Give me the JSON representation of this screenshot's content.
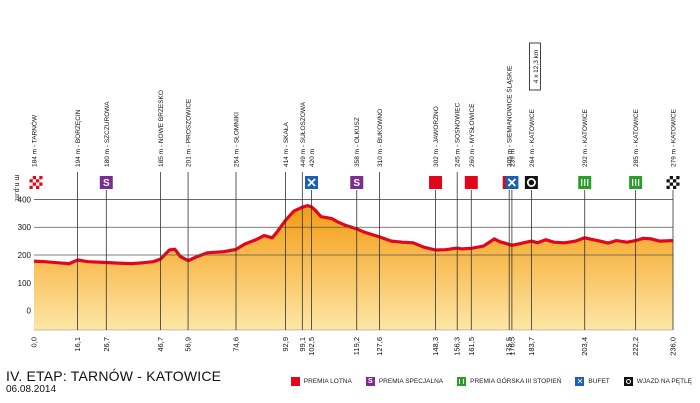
{
  "chart_data": {
    "type": "area",
    "title": "IV. ETAP: TARNÓW - KATOWICE",
    "date": "06.08.2014",
    "ylabel": "m n.p.m.",
    "yticks": [
      "0",
      "100",
      "200",
      "300",
      "400"
    ],
    "ylim": [
      -70,
      470
    ],
    "xlim": [
      0,
      236
    ],
    "grid": "horizontal lines at 200, 300 and 400",
    "colors": {
      "fill": "#f7a11a",
      "line": "#e3051b",
      "grid": "#555555"
    },
    "profile": [
      [
        0,
        178
      ],
      [
        4,
        176
      ],
      [
        9,
        172
      ],
      [
        13,
        169
      ],
      [
        16.1,
        182
      ],
      [
        20,
        176
      ],
      [
        26.7,
        173
      ],
      [
        31,
        171
      ],
      [
        36,
        169
      ],
      [
        40,
        172
      ],
      [
        44,
        176
      ],
      [
        46.7,
        185
      ],
      [
        50,
        218
      ],
      [
        52,
        221
      ],
      [
        54,
        195
      ],
      [
        56.9,
        180
      ],
      [
        60,
        193
      ],
      [
        64,
        208
      ],
      [
        70,
        212
      ],
      [
        74.6,
        220
      ],
      [
        78,
        240
      ],
      [
        82,
        255
      ],
      [
        85,
        270
      ],
      [
        88,
        262
      ],
      [
        90,
        286
      ],
      [
        92.9,
        325
      ],
      [
        96,
        358
      ],
      [
        99.1,
        372
      ],
      [
        101,
        378
      ],
      [
        102.5,
        373
      ],
      [
        104,
        360
      ],
      [
        106,
        338
      ],
      [
        110,
        331
      ],
      [
        112,
        320
      ],
      [
        115,
        307
      ],
      [
        119.2,
        294
      ],
      [
        122,
        282
      ],
      [
        127.6,
        265
      ],
      [
        132,
        250
      ],
      [
        136,
        246
      ],
      [
        140,
        244
      ],
      [
        144,
        228
      ],
      [
        148.3,
        218
      ],
      [
        152,
        219
      ],
      [
        156.3,
        225
      ],
      [
        158,
        222
      ],
      [
        161.5,
        224
      ],
      [
        166,
        232
      ],
      [
        170,
        258
      ],
      [
        172,
        248
      ],
      [
        175.5,
        238
      ],
      [
        176.5,
        235
      ],
      [
        180,
        242
      ],
      [
        183.7,
        250
      ],
      [
        186,
        244
      ],
      [
        189,
        255
      ],
      [
        192,
        246
      ],
      [
        196,
        244
      ],
      [
        200,
        250
      ],
      [
        203.4,
        262
      ],
      [
        206,
        256
      ],
      [
        209,
        250
      ],
      [
        212,
        243
      ],
      [
        215,
        252
      ],
      [
        219,
        246
      ],
      [
        222.2,
        252
      ],
      [
        225,
        260
      ],
      [
        228,
        258
      ],
      [
        231,
        250
      ],
      [
        236,
        252
      ]
    ],
    "km_ticks": [
      "0,0",
      "16,1",
      "26,7",
      "46,7",
      "56,9",
      "74,6",
      "92,9",
      "99,1",
      "102,5",
      "119,2",
      "127,6",
      "148,3",
      "156,3",
      "161,5",
      "175,5",
      "176,5",
      "183,7",
      "203,4",
      "222,2",
      "236,0"
    ],
    "points": [
      {
        "km": 0,
        "label": "184 m - TARNÓW",
        "icon": "start-flag"
      },
      {
        "km": 16.1,
        "label": "194 m - BORZĘCIN",
        "icon": ""
      },
      {
        "km": 26.7,
        "label": "180 m - SZCZUROWA",
        "icon": "S"
      },
      {
        "km": 46.7,
        "label": "185 m - NOWE BRZESKO",
        "icon": ""
      },
      {
        "km": 56.9,
        "label": "201 m - PROSZOWICE",
        "icon": ""
      },
      {
        "km": 74.6,
        "label": "254 m - SŁOMNIKI",
        "icon": ""
      },
      {
        "km": 92.9,
        "label": "414 m - SKAŁA",
        "icon": ""
      },
      {
        "km": 99.1,
        "label": "449 m - SUŁOSZOWA",
        "icon": ""
      },
      {
        "km": 102.5,
        "label": "420 m",
        "icon": "feed"
      },
      {
        "km": 119.2,
        "label": "358 m - OLKUSZ",
        "icon": "S"
      },
      {
        "km": 127.6,
        "label": "310 m - BUKOWNO",
        "icon": ""
      },
      {
        "km": 148.3,
        "label": "302 m - JAWORZNO",
        "icon": "red"
      },
      {
        "km": 156.3,
        "label": "245 m - SOSNOWIEC",
        "icon": ""
      },
      {
        "km": 161.5,
        "label": "260 m - MYSŁOWICE",
        "icon": "red"
      },
      {
        "km": 175.5,
        "label": "305 m - SIEMIANOWICE ŚLĄSKIE",
        "icon": "red"
      },
      {
        "km": 176.5,
        "label": "239 m",
        "icon": "feed"
      },
      {
        "km": 183.7,
        "label": "264 m - KATOWICE",
        "icon": "loop",
        "box": "4 x 12,3 km"
      },
      {
        "km": 203.4,
        "label": "292 m - KATOWICE",
        "icon": "mountain"
      },
      {
        "km": 222.2,
        "label": "285 m - KATOWICE",
        "icon": "mountain"
      },
      {
        "km": 236.0,
        "label": "279 m - KATOWICE",
        "icon": "finish-flag"
      }
    ],
    "legend": [
      {
        "key": "red",
        "label": "PREMIA LOTNA"
      },
      {
        "key": "S",
        "label": "PREMIA SPECJALNA"
      },
      {
        "key": "mountain",
        "label": "PREMIA GÓRSKA III STOPIEŃ"
      },
      {
        "key": "feed",
        "label": "BUFET"
      },
      {
        "key": "loop",
        "label": "WJAZD NA PĘTLĘ"
      }
    ]
  }
}
